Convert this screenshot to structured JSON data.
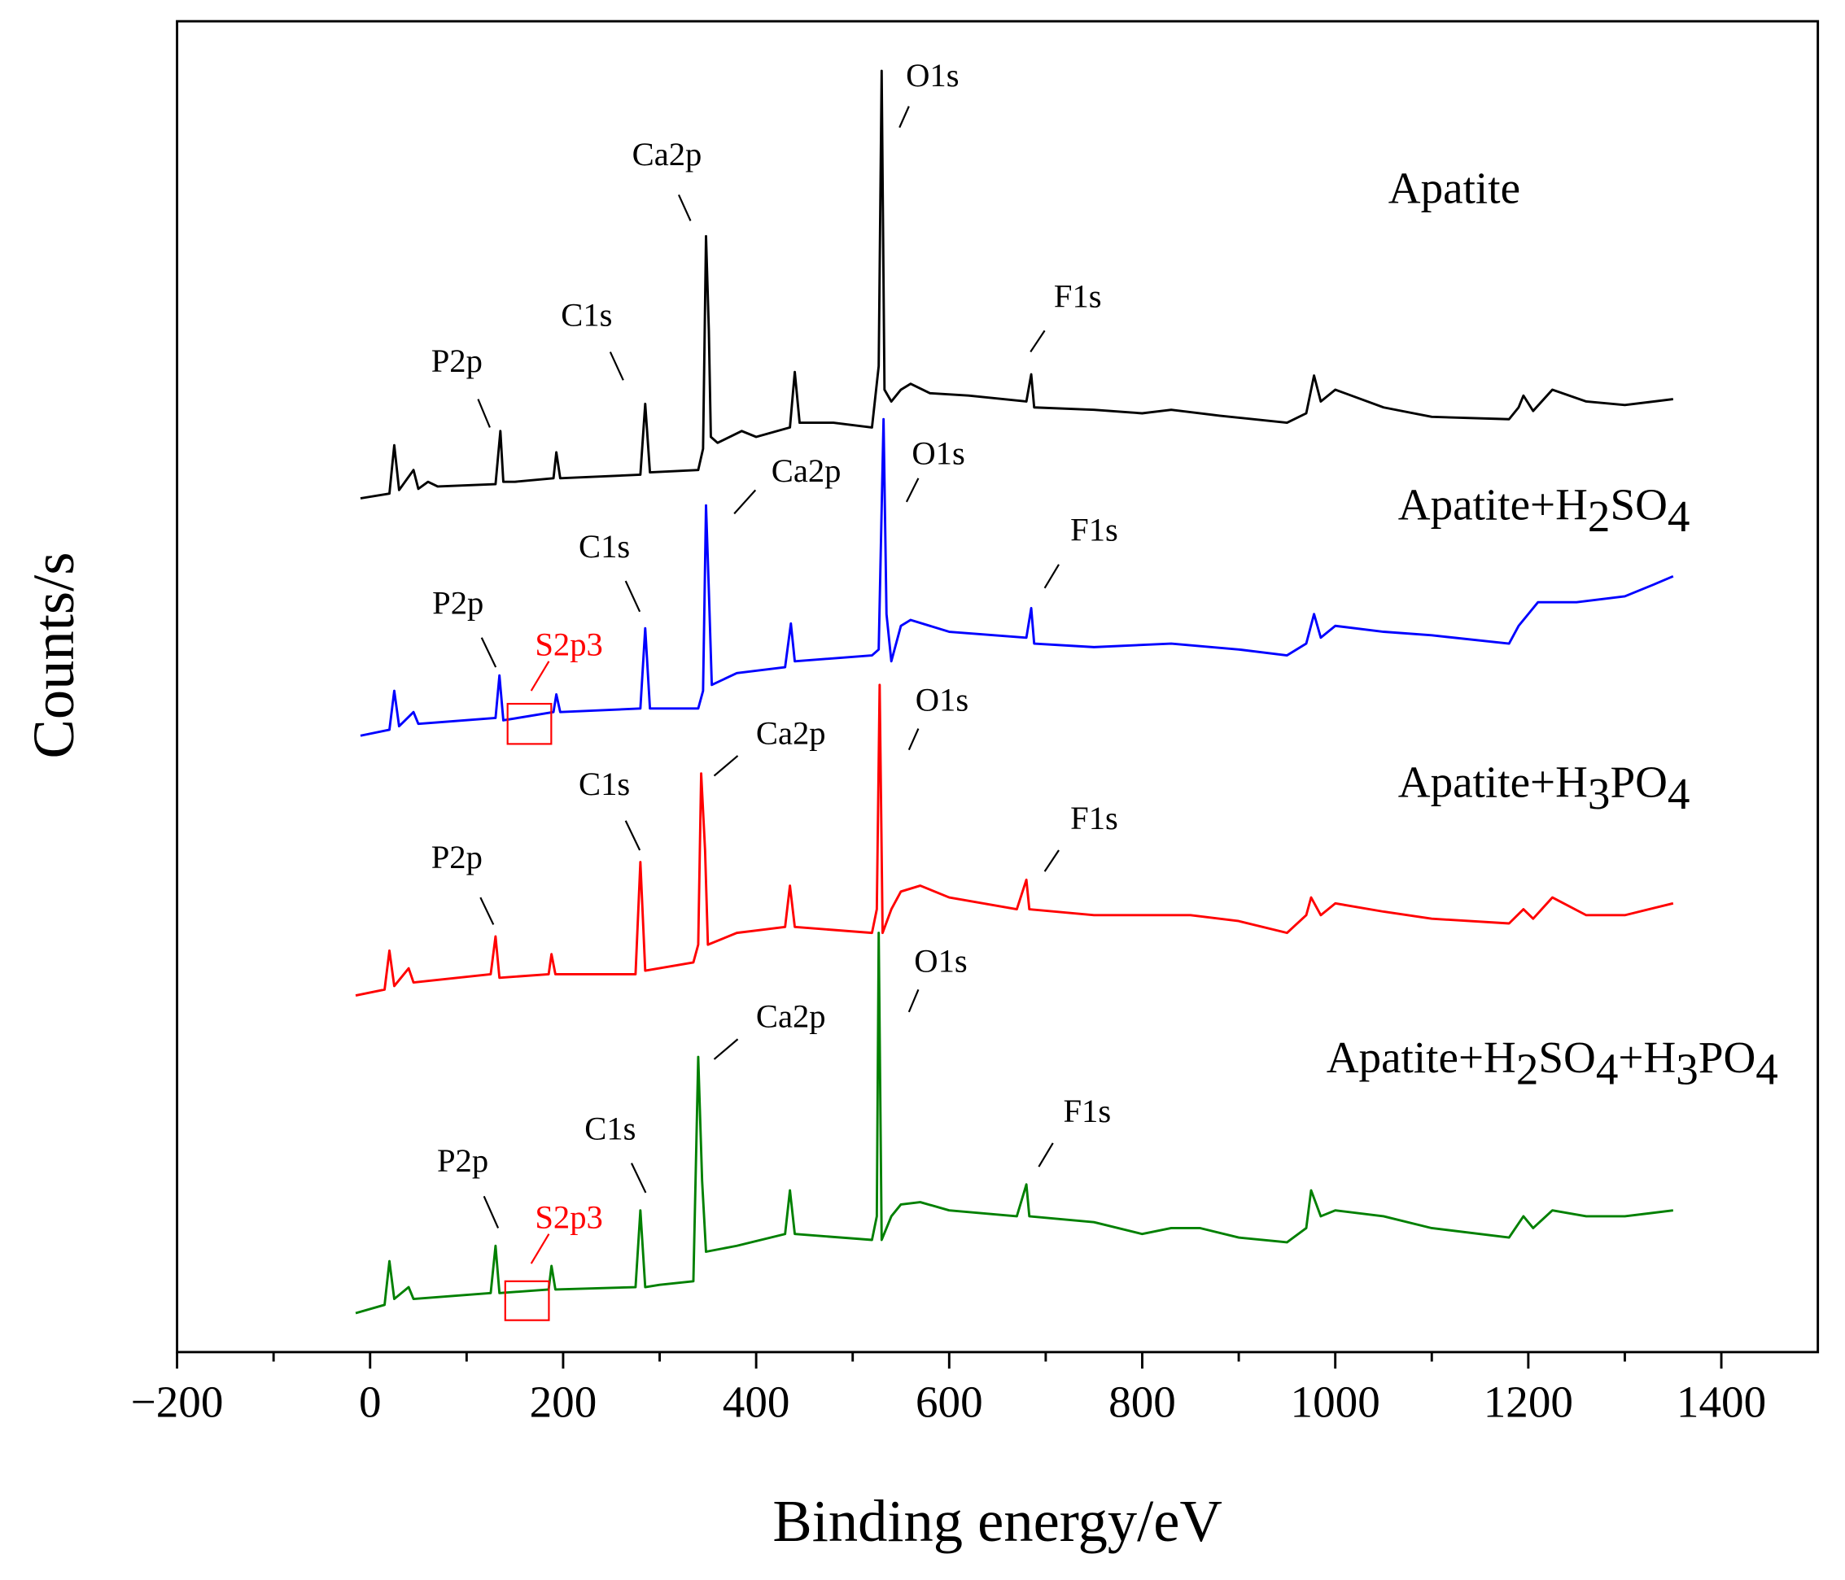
{
  "chart_data": {
    "type": "line",
    "xlabel": "Binding energy/eV",
    "ylabel": "Counts/s",
    "xlim": [
      -200,
      1500
    ],
    "ylim": [
      0,
      1127
    ],
    "xticks": [
      {
        "value": -200,
        "label": "−200"
      },
      0,
      200,
      400,
      600,
      800,
      1000,
      1200,
      1400
    ],
    "xminorticks": [
      -100,
      100,
      300,
      500,
      700,
      900,
      1100,
      1300
    ],
    "series": [
      {
        "name": "Apatite",
        "color": "#000000",
        "x": [
          -10,
          20,
          25,
          30,
          45,
          50,
          60,
          70,
          130,
          135,
          138,
          150,
          190,
          193,
          197,
          280,
          285,
          290,
          340,
          345,
          348,
          351,
          353,
          360,
          385,
          400,
          435,
          440,
          445,
          480,
          520,
          527,
          530,
          533,
          540,
          550,
          560,
          580,
          620,
          680,
          685,
          688,
          750,
          800,
          830,
          880,
          950,
          970,
          978,
          985,
          1000,
          1050,
          1100,
          1180,
          1190,
          1195,
          1205,
          1225,
          1260,
          1300,
          1350
        ],
        "values": [
          723,
          727,
          768,
          730,
          747,
          731,
          737,
          733,
          735,
          780,
          737,
          737,
          740,
          762,
          740,
          743,
          803,
          745,
          747,
          765,
          945,
          865,
          775,
          770,
          780,
          775,
          783,
          830,
          787,
          787,
          783,
          835,
          1085,
          815,
          805,
          815,
          820,
          812,
          810,
          805,
          828,
          800,
          798,
          795,
          798,
          793,
          787,
          795,
          827,
          805,
          815,
          800,
          792,
          790,
          800,
          810,
          797,
          815,
          805,
          802,
          807
        ]
      },
      {
        "name": "Apatite+H2SO4",
        "color": "#0000ff",
        "x": [
          -10,
          20,
          25,
          30,
          45,
          50,
          130,
          134,
          138,
          190,
          193,
          197,
          280,
          285,
          290,
          340,
          345,
          348,
          351,
          354,
          380,
          430,
          436,
          440,
          520,
          527,
          532,
          535,
          540,
          550,
          560,
          600,
          680,
          685,
          688,
          750,
          830,
          900,
          950,
          970,
          978,
          985,
          1000,
          1050,
          1100,
          1180,
          1190,
          1200,
          1210,
          1250,
          1300,
          1330,
          1350
        ],
        "values": [
          522,
          527,
          560,
          530,
          542,
          532,
          537,
          573,
          535,
          542,
          557,
          542,
          545,
          613,
          545,
          545,
          560,
          717,
          645,
          565,
          575,
          580,
          617,
          585,
          590,
          595,
          790,
          625,
          585,
          615,
          620,
          610,
          605,
          630,
          600,
          597,
          600,
          595,
          590,
          600,
          625,
          605,
          615,
          610,
          607,
          600,
          615,
          625,
          635,
          635,
          640,
          650,
          657
        ]
      },
      {
        "name": "Apatite+H3PO4",
        "color": "#ff0000",
        "x": [
          -15,
          15,
          20,
          25,
          40,
          45,
          125,
          130,
          134,
          185,
          188,
          192,
          275,
          280,
          285,
          335,
          340,
          343,
          347,
          350,
          380,
          430,
          435,
          440,
          520,
          525,
          528,
          531,
          540,
          550,
          570,
          600,
          670,
          680,
          683,
          750,
          850,
          900,
          950,
          970,
          975,
          985,
          1000,
          1050,
          1100,
          1180,
          1195,
          1205,
          1225,
          1260,
          1300,
          1350
        ],
        "values": [
          302,
          307,
          340,
          310,
          325,
          313,
          320,
          352,
          317,
          320,
          337,
          320,
          320,
          415,
          323,
          330,
          345,
          490,
          425,
          345,
          355,
          360,
          395,
          360,
          355,
          375,
          565,
          355,
          375,
          390,
          395,
          385,
          375,
          400,
          375,
          370,
          370,
          365,
          355,
          370,
          385,
          370,
          380,
          373,
          367,
          363,
          375,
          367,
          385,
          370,
          370,
          380
        ]
      },
      {
        "name": "Apatite+H2SO4+H3PO4",
        "color": "#008000",
        "x": [
          -15,
          15,
          20,
          25,
          40,
          45,
          125,
          130,
          134,
          185,
          188,
          192,
          275,
          280,
          285,
          300,
          335,
          340,
          344,
          348,
          380,
          430,
          435,
          440,
          520,
          525,
          527,
          530,
          540,
          550,
          570,
          600,
          670,
          680,
          683,
          750,
          800,
          830,
          860,
          900,
          950,
          970,
          975,
          985,
          1000,
          1050,
          1100,
          1180,
          1195,
          1205,
          1225,
          1260,
          1300,
          1350
        ],
        "values": [
          33,
          40,
          77,
          45,
          55,
          45,
          50,
          90,
          50,
          53,
          73,
          53,
          55,
          120,
          55,
          57,
          60,
          250,
          145,
          85,
          90,
          100,
          137,
          100,
          95,
          115,
          355,
          95,
          115,
          125,
          127,
          120,
          115,
          142,
          115,
          110,
          100,
          105,
          105,
          97,
          93,
          105,
          137,
          115,
          120,
          115,
          105,
          97,
          115,
          105,
          120,
          115,
          115,
          120
        ]
      }
    ],
    "annotations": [
      {
        "text": "P2p",
        "color": "#000000"
      },
      {
        "text": "C1s",
        "color": "#000000"
      },
      {
        "text": "Ca2p",
        "color": "#000000"
      },
      {
        "text": "O1s",
        "color": "#000000"
      },
      {
        "text": "F1s",
        "color": "#000000"
      },
      {
        "text": "P2p",
        "color": "#000000"
      },
      {
        "text": "S2p3",
        "color": "#ff0000"
      },
      {
        "text": "C1s",
        "color": "#000000"
      },
      {
        "text": "Ca2p",
        "color": "#000000"
      },
      {
        "text": "O1s",
        "color": "#000000"
      },
      {
        "text": "F1s",
        "color": "#000000"
      },
      {
        "text": "P2p",
        "color": "#000000"
      },
      {
        "text": "C1s",
        "color": "#000000"
      },
      {
        "text": "Ca2p",
        "color": "#000000"
      },
      {
        "text": "O1s",
        "color": "#000000"
      },
      {
        "text": "F1s",
        "color": "#000000"
      },
      {
        "text": "P2p",
        "color": "#000000"
      },
      {
        "text": "S2p3",
        "color": "#ff0000"
      },
      {
        "text": "C1s",
        "color": "#000000"
      },
      {
        "text": "Ca2p",
        "color": "#000000"
      },
      {
        "text": "O1s",
        "color": "#000000"
      },
      {
        "text": "F1s",
        "color": "#000000"
      }
    ]
  }
}
